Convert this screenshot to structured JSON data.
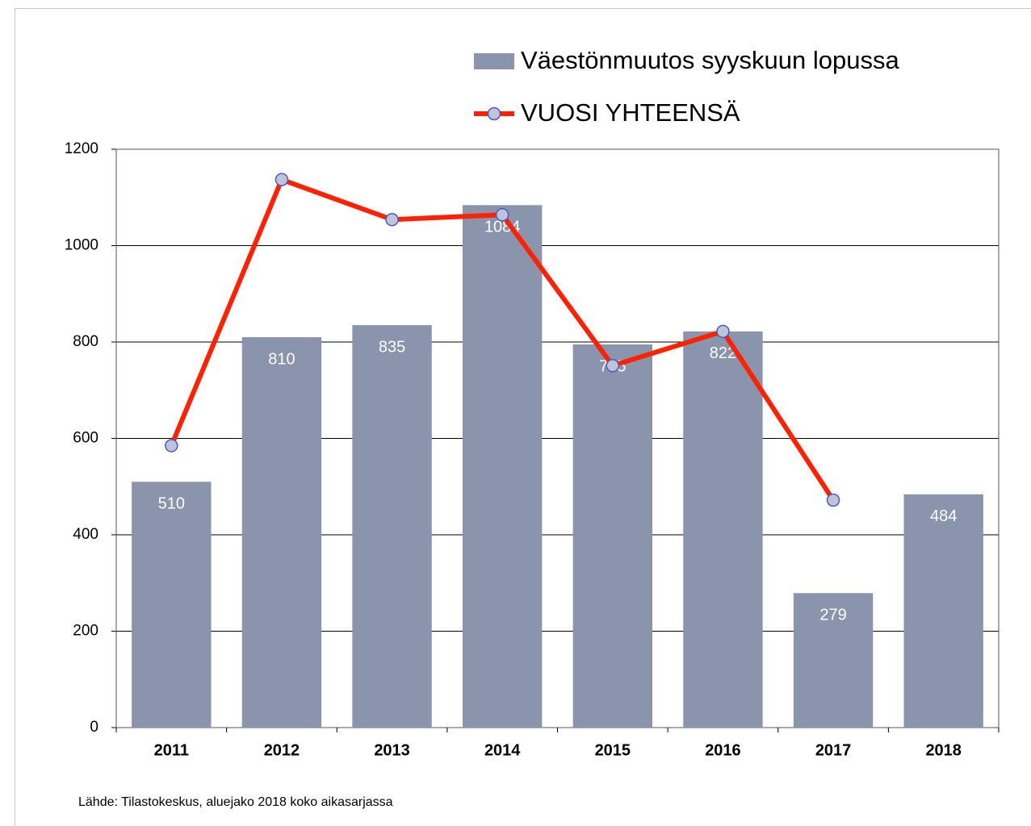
{
  "chart_data": {
    "type": "bar",
    "categories": [
      "2011",
      "2012",
      "2013",
      "2014",
      "2015",
      "2016",
      "2017",
      "2018"
    ],
    "series": [
      {
        "name": "Väestönmuutos syyskuun lopussa",
        "type": "bar",
        "color": "#8a94ad",
        "values": [
          510,
          810,
          835,
          1084,
          795,
          822,
          279,
          484
        ]
      },
      {
        "name": "VUOSI YHTEENSÄ",
        "type": "line",
        "color": "#ff2200",
        "marker_fill": "#c0c4d8",
        "marker_stroke": "#4a5ac8",
        "values": [
          585,
          1137,
          1054,
          1064,
          751,
          822,
          472,
          null
        ]
      }
    ],
    "ylim": [
      0,
      1200
    ],
    "yticks": [
      0,
      200,
      400,
      600,
      800,
      1000,
      1200
    ],
    "grid": true,
    "source": "Lähde: Tilastokeskus, aluejako 2018 koko aikasarjassa"
  }
}
